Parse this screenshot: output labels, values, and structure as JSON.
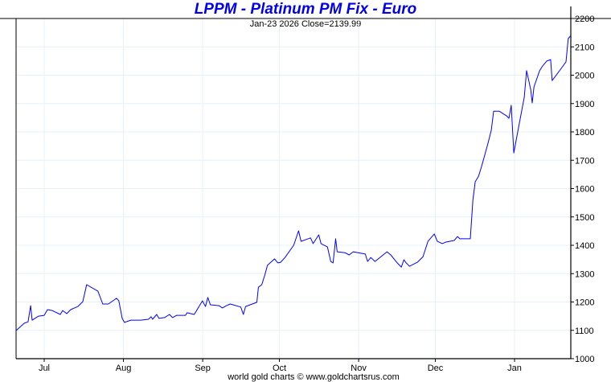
{
  "chart_data": {
    "type": "line",
    "title": "LPPM - Platinum PM Fix - Euro",
    "subtitle": "Jan-23  2026   Close=2139.99",
    "footer": "world gold charts © www.goldchartsrus.com",
    "xlabel": "",
    "ylabel": "",
    "x_units": "days since Jul 1 2025",
    "xlim": [
      -11,
      206
    ],
    "ylim": [
      1000,
      2200
    ],
    "yticks": [
      1000,
      1100,
      1200,
      1300,
      1400,
      1500,
      1600,
      1700,
      1800,
      1900,
      2000,
      2100,
      2200
    ],
    "xticks": [
      {
        "label": "Jul",
        "day": 0
      },
      {
        "label": "Aug",
        "day": 31
      },
      {
        "label": "Sep",
        "day": 62
      },
      {
        "label": "Oct",
        "day": 92
      },
      {
        "label": "Nov",
        "day": 123
      },
      {
        "label": "Dec",
        "day": 153
      },
      {
        "label": "Jan",
        "day": 184
      }
    ],
    "grid": true,
    "y_axis_side": "right",
    "line_color": "#0000ff",
    "grid_color": "#e6f0fa",
    "series": [
      {
        "name": "Platinum PM Fix (EUR)",
        "points": [
          [
            -11,
            1099
          ],
          [
            -7.8,
            1125
          ],
          [
            -6.3,
            1130
          ],
          [
            -5.3,
            1187
          ],
          [
            -4.7,
            1136
          ],
          [
            -2.2,
            1150
          ],
          [
            0,
            1153
          ],
          [
            1.3,
            1173
          ],
          [
            3.1,
            1170
          ],
          [
            6.3,
            1156
          ],
          [
            7.2,
            1170
          ],
          [
            8.8,
            1159
          ],
          [
            10.4,
            1173
          ],
          [
            13.2,
            1184
          ],
          [
            15.1,
            1201
          ],
          [
            16.6,
            1261
          ],
          [
            21,
            1238
          ],
          [
            22.9,
            1193
          ],
          [
            25.1,
            1193
          ],
          [
            28.3,
            1213
          ],
          [
            29.2,
            1204
          ],
          [
            30.5,
            1142
          ],
          [
            31.4,
            1128
          ],
          [
            33.9,
            1136
          ],
          [
            37.7,
            1136
          ],
          [
            40.8,
            1139
          ],
          [
            41.8,
            1148
          ],
          [
            42.4,
            1139
          ],
          [
            44,
            1156
          ],
          [
            44.9,
            1142
          ],
          [
            47.1,
            1145
          ],
          [
            49,
            1156
          ],
          [
            50.2,
            1145
          ],
          [
            51.8,
            1153
          ],
          [
            55.3,
            1153
          ],
          [
            55.9,
            1162
          ],
          [
            58.7,
            1156
          ],
          [
            61.9,
            1204
          ],
          [
            63.1,
            1184
          ],
          [
            64,
            1216
          ],
          [
            65,
            1190
          ],
          [
            68.4,
            1187
          ],
          [
            69.7,
            1179
          ],
          [
            71.3,
            1187
          ],
          [
            72.8,
            1193
          ],
          [
            76.9,
            1182
          ],
          [
            77.9,
            1156
          ],
          [
            78.8,
            1184
          ],
          [
            83.2,
            1199
          ],
          [
            83.8,
            1252
          ],
          [
            85.1,
            1261
          ],
          [
            86.3,
            1295
          ],
          [
            87.3,
            1329
          ],
          [
            90.1,
            1352
          ],
          [
            91.4,
            1338
          ],
          [
            92.5,
            1340
          ],
          [
            94.2,
            1357
          ],
          [
            97.6,
            1400
          ],
          [
            99.5,
            1451
          ],
          [
            100.5,
            1414
          ],
          [
            104.2,
            1426
          ],
          [
            105.2,
            1406
          ],
          [
            107.4,
            1437
          ],
          [
            108.3,
            1406
          ],
          [
            110.8,
            1394
          ],
          [
            112.1,
            1343
          ],
          [
            113,
            1338
          ],
          [
            114,
            1423
          ],
          [
            114.6,
            1377
          ],
          [
            117.7,
            1374
          ],
          [
            119.3,
            1366
          ],
          [
            120.9,
            1377
          ],
          [
            125.6,
            1369
          ],
          [
            126.5,
            1343
          ],
          [
            127.8,
            1357
          ],
          [
            129.4,
            1343
          ],
          [
            134.1,
            1377
          ],
          [
            135.6,
            1366
          ],
          [
            138.1,
            1338
          ],
          [
            139.7,
            1323
          ],
          [
            140.7,
            1349
          ],
          [
            141.6,
            1338
          ],
          [
            142.9,
            1326
          ],
          [
            146,
            1340
          ],
          [
            148.2,
            1360
          ],
          [
            150.1,
            1414
          ],
          [
            152.6,
            1440
          ],
          [
            153.8,
            1414
          ],
          [
            155.7,
            1406
          ],
          [
            157,
            1411
          ],
          [
            160.4,
            1417
          ],
          [
            161.7,
            1431
          ],
          [
            162.6,
            1423
          ],
          [
            166.7,
            1423
          ],
          [
            167.7,
            1559
          ],
          [
            168.6,
            1624
          ],
          [
            169.9,
            1643
          ],
          [
            171.1,
            1678
          ],
          [
            173.6,
            1760
          ],
          [
            174.9,
            1806
          ],
          [
            175.8,
            1873
          ],
          [
            178,
            1873
          ],
          [
            180.8,
            1857
          ],
          [
            181.8,
            1848
          ],
          [
            182.7,
            1894
          ],
          [
            183.7,
            1726
          ],
          [
            185.6,
            1817
          ],
          [
            187.8,
            1922
          ],
          [
            188.7,
            2016
          ],
          [
            190.3,
            1950
          ],
          [
            190.9,
            1902
          ],
          [
            191.6,
            1959
          ],
          [
            193.8,
            2016
          ],
          [
            195,
            2033
          ],
          [
            196.6,
            2050
          ],
          [
            198.1,
            2055
          ],
          [
            198.7,
            1981
          ],
          [
            202.5,
            2027
          ],
          [
            204.1,
            2047
          ],
          [
            205,
            2129
          ],
          [
            206,
            2140
          ]
        ]
      }
    ]
  }
}
